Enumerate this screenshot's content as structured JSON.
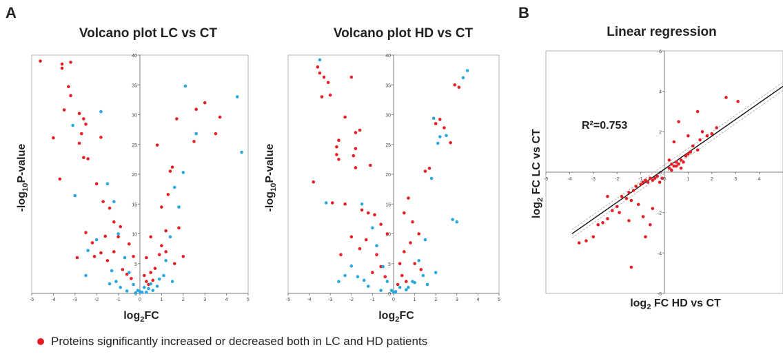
{
  "panel_labels": {
    "a": "A",
    "b": "B"
  },
  "legend": {
    "text": "Proteins significantly increased or decreased both in LC and HD patients",
    "color": "#e41f26"
  },
  "colors": {
    "red": "#e41f26",
    "blue": "#29a8e0"
  },
  "chart_data": [
    {
      "type": "scatter",
      "title": "Volcano plot LC vs CT",
      "ylabel": "-log10P-value",
      "xlabel": "log2FC",
      "xlim": [
        -5,
        5
      ],
      "ylim": [
        0,
        40
      ],
      "xticks": [
        "-5",
        "-4",
        "-3",
        "-2",
        "-1",
        "0",
        "1",
        "2",
        "3",
        "4",
        "5"
      ],
      "yticks": [
        "0",
        "5",
        "10",
        "15",
        "20",
        "25",
        "30",
        "35",
        "40"
      ],
      "series": [
        {
          "color": "#e41f26",
          "points": [
            [
              -4.6,
              39
            ],
            [
              -3.6,
              38.5
            ],
            [
              -3.6,
              37.8
            ],
            [
              -3.2,
              38.8
            ],
            [
              -3.3,
              34.7
            ],
            [
              -3.2,
              33.2
            ],
            [
              -3.5,
              30.8
            ],
            [
              -2.8,
              30.2
            ],
            [
              -2.6,
              29.3
            ],
            [
              -2.5,
              28.4
            ],
            [
              -2.7,
              26.8
            ],
            [
              -2.8,
              25.2
            ],
            [
              -2.6,
              22.8
            ],
            [
              -2.4,
              22.6
            ],
            [
              -1.8,
              26.2
            ],
            [
              -2.0,
              18.4
            ],
            [
              -1.7,
              15.4
            ],
            [
              -1.4,
              14.3
            ],
            [
              -1.2,
              12.0
            ],
            [
              -0.9,
              11.2
            ],
            [
              -0.5,
              8.3
            ],
            [
              -0.3,
              6.2
            ],
            [
              -4.0,
              26.1
            ],
            [
              -3.7,
              19.2
            ],
            [
              -2.5,
              10.2
            ],
            [
              -2.2,
              8.5
            ],
            [
              -1.6,
              9.6
            ],
            [
              -1.8,
              6.8
            ],
            [
              -1.5,
              5.5
            ],
            [
              -1.2,
              7.0
            ],
            [
              -1.0,
              9.5
            ],
            [
              -2.9,
              6.0
            ],
            [
              -2.1,
              6.2
            ],
            [
              -0.8,
              4.0
            ],
            [
              -0.6,
              3.2
            ],
            [
              -0.4,
              2.5
            ],
            [
              0.2,
              3.0
            ],
            [
              0.3,
              2.0
            ],
            [
              0.5,
              3.5
            ],
            [
              0.4,
              1.5
            ],
            [
              0.6,
              2.2
            ],
            [
              0.7,
              4.2
            ],
            [
              0.9,
              6.5
            ],
            [
              1.0,
              8.0
            ],
            [
              1.2,
              10.5
            ],
            [
              1.3,
              16.6
            ],
            [
              1.4,
              20.5
            ],
            [
              1.5,
              21.2
            ],
            [
              1.7,
              29.3
            ],
            [
              0.8,
              24.9
            ],
            [
              1.0,
              14.5
            ],
            [
              2.5,
              25.5
            ],
            [
              2.6,
              30.9
            ],
            [
              3.0,
              32.0
            ],
            [
              3.5,
              26.8
            ],
            [
              3.7,
              29.6
            ],
            [
              1.8,
              11.0
            ],
            [
              1.2,
              7.0
            ],
            [
              0.5,
              9.5
            ],
            [
              0.3,
              6.0
            ],
            [
              1.6,
              5.0
            ],
            [
              2.0,
              6.2
            ]
          ]
        },
        {
          "color": "#29a8e0",
          "points": [
            [
              -3.1,
              28.2
            ],
            [
              -3.0,
              16.4
            ],
            [
              -1.8,
              30.5
            ],
            [
              -1.5,
              18.4
            ],
            [
              -1.2,
              15.4
            ],
            [
              -1.0,
              10.0
            ],
            [
              -0.7,
              6.0
            ],
            [
              -0.5,
              3.5
            ],
            [
              -0.3,
              1.5
            ],
            [
              -0.1,
              0.5
            ],
            [
              0.1,
              0.2
            ],
            [
              0.2,
              1.0
            ],
            [
              0.4,
              0.8
            ],
            [
              0.6,
              0.5
            ],
            [
              0.8,
              1.2
            ],
            [
              1.2,
              5.5
            ],
            [
              1.4,
              9.5
            ],
            [
              1.6,
              17.8
            ],
            [
              1.8,
              14.5
            ],
            [
              2.0,
              20.3
            ],
            [
              2.1,
              34.8
            ],
            [
              2.6,
              26.8
            ],
            [
              4.5,
              33.0
            ],
            [
              4.7,
              23.7
            ],
            [
              -2.4,
              7.2
            ],
            [
              -2.0,
              9.0
            ],
            [
              -1.3,
              3.8
            ],
            [
              -1.1,
              2.0
            ],
            [
              -0.9,
              1.0
            ],
            [
              -0.6,
              0.4
            ],
            [
              -0.2,
              0.1
            ],
            [
              0.0,
              0.3
            ],
            [
              0.3,
              0.2
            ],
            [
              0.5,
              1.6
            ],
            [
              0.9,
              2.4
            ],
            [
              1.1,
              3.0
            ],
            [
              1.5,
              2.0
            ],
            [
              -2.5,
              3.0
            ],
            [
              -1.4,
              1.6
            ]
          ]
        }
      ]
    },
    {
      "type": "scatter",
      "title": "Volcano plot HD vs CT",
      "ylabel": "-log10P-value",
      "xlabel": "log2FC",
      "xlim": [
        -5,
        5
      ],
      "ylim": [
        0,
        40
      ],
      "xticks": [
        "-5",
        "-4",
        "-3",
        "-2",
        "-1",
        "0",
        "1",
        "2",
        "3",
        "4",
        "5"
      ],
      "yticks": [
        "0",
        "5",
        "10",
        "15",
        "20",
        "25",
        "30",
        "35",
        "40"
      ],
      "series": [
        {
          "color": "#e41f26",
          "points": [
            [
              -3.6,
              38.0
            ],
            [
              -3.5,
              37.0
            ],
            [
              -3.3,
              36.3
            ],
            [
              -3.1,
              35.4
            ],
            [
              -3.0,
              33.3
            ],
            [
              -3.4,
              33.0
            ],
            [
              -2.0,
              36.3
            ],
            [
              -2.3,
              29.6
            ],
            [
              -1.8,
              27.0
            ],
            [
              -1.6,
              27.4
            ],
            [
              -2.6,
              25.7
            ],
            [
              -2.7,
              24.6
            ],
            [
              -2.7,
              23.3
            ],
            [
              -2.6,
              22.5
            ],
            [
              -1.8,
              24.3
            ],
            [
              -1.9,
              23.1
            ],
            [
              -1.8,
              21.1
            ],
            [
              -1.1,
              21.5
            ],
            [
              -3.8,
              18.7
            ],
            [
              -2.9,
              15.2
            ],
            [
              -2.3,
              15.0
            ],
            [
              -1.5,
              14.0
            ],
            [
              -1.2,
              13.5
            ],
            [
              -0.9,
              13.2
            ],
            [
              -0.6,
              11.6
            ],
            [
              -0.3,
              10.0
            ],
            [
              0.5,
              13.5
            ],
            [
              0.7,
              16.0
            ],
            [
              0.9,
              12.0
            ],
            [
              1.2,
              10.0
            ],
            [
              1.5,
              20.5
            ],
            [
              1.7,
              21.0
            ],
            [
              2.0,
              28.5
            ],
            [
              2.2,
              29.2
            ],
            [
              2.4,
              27.8
            ],
            [
              2.7,
              25.3
            ],
            [
              2.9,
              35.0
            ],
            [
              3.1,
              34.6
            ],
            [
              0.3,
              5.0
            ],
            [
              0.4,
              3.0
            ],
            [
              0.6,
              2.0
            ],
            [
              0.2,
              1.5
            ],
            [
              -0.4,
              2.8
            ],
            [
              -0.6,
              4.5
            ],
            [
              -0.8,
              6.5
            ],
            [
              -1.3,
              9.0
            ],
            [
              -1.0,
              3.5
            ],
            [
              0.8,
              8.5
            ],
            [
              1.0,
              5.0
            ],
            [
              0.5,
              7.0
            ],
            [
              1.3,
              4.0
            ],
            [
              -2.0,
              9.5
            ],
            [
              -2.5,
              6.5
            ],
            [
              -1.6,
              7.5
            ]
          ]
        },
        {
          "color": "#29a8e0",
          "points": [
            [
              -3.5,
              39.2
            ],
            [
              -3.2,
              15.2
            ],
            [
              -1.5,
              15.0
            ],
            [
              -1.0,
              11.0
            ],
            [
              -0.8,
              8.0
            ],
            [
              -0.5,
              4.5
            ],
            [
              -0.3,
              2.0
            ],
            [
              -0.1,
              0.5
            ],
            [
              0.1,
              0.3
            ],
            [
              0.3,
              1.0
            ],
            [
              0.6,
              0.6
            ],
            [
              0.9,
              2.0
            ],
            [
              1.2,
              5.5
            ],
            [
              1.5,
              9.0
            ],
            [
              1.8,
              19.3
            ],
            [
              1.9,
              29.4
            ],
            [
              2.1,
              25.2
            ],
            [
              2.2,
              26.3
            ],
            [
              2.5,
              26.5
            ],
            [
              2.8,
              12.4
            ],
            [
              3.0,
              12.0
            ],
            [
              3.3,
              36.2
            ],
            [
              3.5,
              37.4
            ],
            [
              -2.3,
              3.0
            ],
            [
              -2.0,
              4.6
            ],
            [
              -1.7,
              2.8
            ],
            [
              -1.2,
              1.2
            ],
            [
              -0.6,
              0.5
            ],
            [
              0.0,
              0.2
            ],
            [
              0.7,
              1.0
            ],
            [
              1.0,
              1.8
            ],
            [
              1.4,
              3.0
            ],
            [
              2.0,
              3.5
            ],
            [
              -2.6,
              2.0
            ],
            [
              -1.4,
              2.2
            ],
            [
              1.6,
              1.5
            ]
          ]
        }
      ]
    },
    {
      "type": "scatter",
      "title": "Linear regression",
      "ylabel": "log2 FC LC vs CT",
      "xlabel": "log2 FC HD vs CT",
      "annotation": "R²=0.753",
      "xlim": [
        -5,
        5
      ],
      "ylim": [
        -6,
        6
      ],
      "xticks": [
        "-5",
        "-4",
        "-3",
        "-2",
        "-1",
        "0",
        "1",
        "2",
        "3",
        "4"
      ],
      "yticks": [
        "-6",
        "-4",
        "-2",
        "0",
        "2",
        "4",
        "6"
      ],
      "regression": {
        "slope": 0.82,
        "intercept": 0.15
      },
      "series": [
        {
          "color": "#e41f26",
          "points": [
            [
              -3.6,
              -3.5
            ],
            [
              -3.3,
              -3.4
            ],
            [
              -3.0,
              -3.2
            ],
            [
              -2.8,
              -2.6
            ],
            [
              -2.6,
              -2.5
            ],
            [
              -2.4,
              -2.3
            ],
            [
              -2.2,
              -1.9
            ],
            [
              -2.0,
              -1.7
            ],
            [
              -1.9,
              -2.0
            ],
            [
              -1.8,
              -1.2
            ],
            [
              -1.6,
              -1.3
            ],
            [
              -1.5,
              -1.0
            ],
            [
              -1.4,
              -1.4
            ],
            [
              -1.3,
              -0.9
            ],
            [
              -1.2,
              -0.7
            ],
            [
              -1.1,
              -1.6
            ],
            [
              -1.0,
              -0.6
            ],
            [
              -0.9,
              -0.5
            ],
            [
              -0.8,
              -0.4
            ],
            [
              -0.7,
              -0.5
            ],
            [
              -0.6,
              -0.3
            ],
            [
              -0.5,
              -0.4
            ],
            [
              -0.4,
              -0.3
            ],
            [
              -0.3,
              -0.2
            ],
            [
              -0.2,
              -0.5
            ],
            [
              -0.1,
              -0.3
            ],
            [
              -0.6,
              -2.6
            ],
            [
              -0.8,
              -3.2
            ],
            [
              -1.4,
              -4.7
            ],
            [
              -0.5,
              -1.8
            ],
            [
              -0.9,
              -2.2
            ],
            [
              -1.5,
              -2.4
            ],
            [
              -2.4,
              -1.2
            ],
            [
              0.2,
              0.2
            ],
            [
              0.3,
              0.4
            ],
            [
              0.4,
              0.3
            ],
            [
              0.5,
              0.5
            ],
            [
              0.6,
              0.4
            ],
            [
              0.7,
              0.6
            ],
            [
              0.8,
              0.5
            ],
            [
              0.9,
              0.8
            ],
            [
              1.0,
              0.9
            ],
            [
              1.1,
              1.0
            ],
            [
              1.2,
              1.3
            ],
            [
              1.4,
              1.1
            ],
            [
              1.5,
              1.6
            ],
            [
              1.6,
              2.0
            ],
            [
              1.8,
              1.8
            ],
            [
              2.0,
              1.9
            ],
            [
              2.2,
              2.2
            ],
            [
              2.6,
              3.7
            ],
            [
              3.1,
              3.5
            ],
            [
              1.4,
              3.0
            ],
            [
              0.6,
              2.5
            ],
            [
              0.4,
              1.5
            ],
            [
              1.0,
              1.8
            ],
            [
              0.2,
              0.6
            ],
            [
              0.3,
              0.1
            ],
            [
              0.5,
              0.3
            ],
            [
              0.7,
              0.2
            ]
          ]
        }
      ]
    }
  ]
}
